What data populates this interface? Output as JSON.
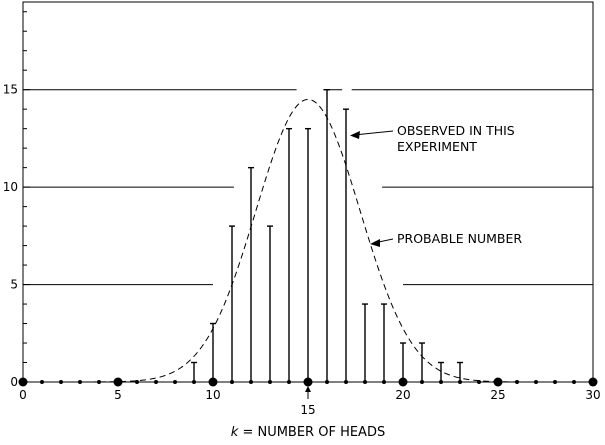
{
  "chart_data": {
    "type": "bar",
    "xlabel_var": "k",
    "xlabel_text": " = NUMBER OF HEADS",
    "ylabel": "",
    "xlim": [
      0,
      30
    ],
    "ylim": [
      0,
      19.5
    ],
    "x_ticks": [
      "0",
      "5",
      "10",
      "15",
      "20",
      "25",
      "30"
    ],
    "x_marker_label": "15",
    "y_ticks": [
      "0",
      "5",
      "10",
      "15"
    ],
    "grid_levels": [
      5,
      10,
      15
    ],
    "series": [
      {
        "name": "OBSERVED IN THIS EXPERIMENT",
        "style": "stems",
        "x": [
          0,
          1,
          2,
          3,
          4,
          5,
          6,
          7,
          8,
          9,
          10,
          11,
          12,
          13,
          14,
          15,
          16,
          17,
          18,
          19,
          20,
          21,
          22,
          23,
          24,
          25,
          26,
          27,
          28,
          29,
          30
        ],
        "values": [
          0,
          0,
          0,
          0,
          0,
          0,
          0,
          0,
          0,
          1,
          3,
          8,
          11,
          8,
          13,
          13,
          15,
          14,
          4,
          4,
          2,
          2,
          1,
          1,
          0,
          0,
          0,
          0,
          0,
          0,
          0
        ]
      },
      {
        "name": "PROBABLE NUMBER",
        "style": "dashed-curve",
        "mean": 15,
        "sd": 2.74,
        "peak": 14.5
      }
    ],
    "annotations": [
      {
        "text_lines": [
          "OBSERVED IN THIS",
          "EXPERIMENT"
        ],
        "points_to": "k=17"
      },
      {
        "text_lines": [
          "PROBABLE NUMBER"
        ],
        "points_to": "curve"
      }
    ]
  }
}
